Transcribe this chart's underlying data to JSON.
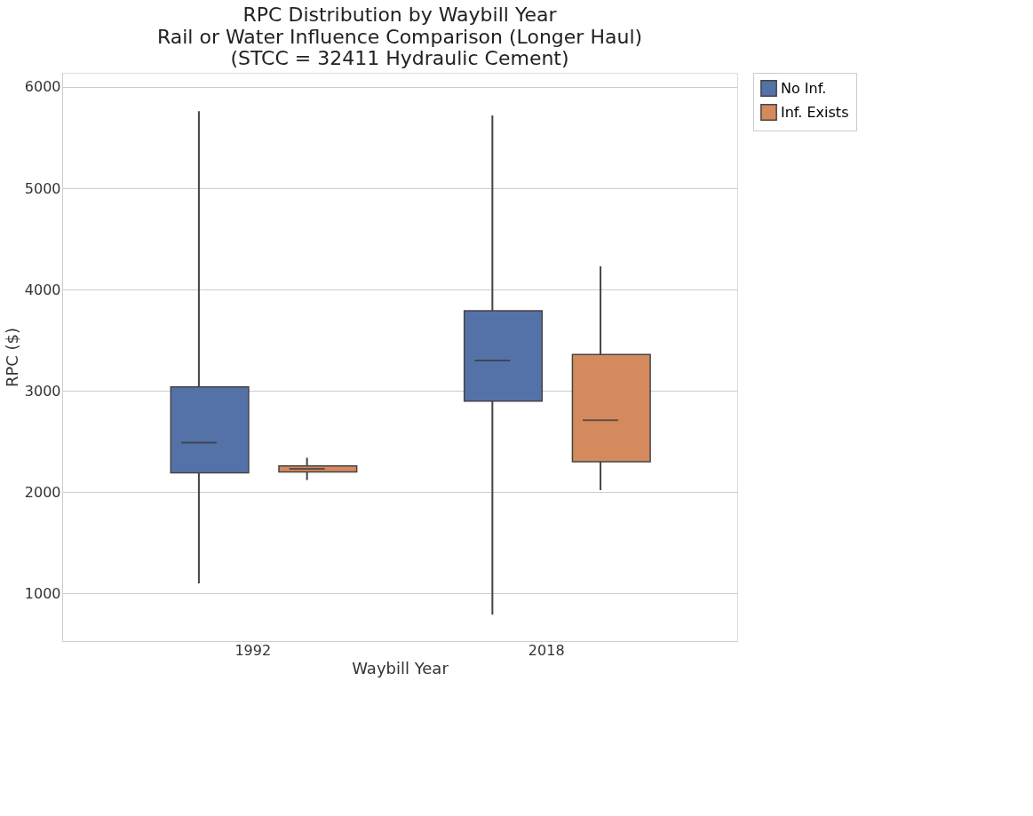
{
  "chart_data": {
    "type": "box",
    "title": "RPC Distribution by Waybill Year",
    "subtitle": [
      "Rail or Water Influence Comparison (Longer Haul)",
      "(STCC = 32411 Hydraulic Cement)"
    ],
    "xlabel": "Waybill Year",
    "ylabel": "RPC ($)",
    "categories": [
      "1992",
      "2018"
    ],
    "series": [
      {
        "name": "No Inf.",
        "color": "#5572a8",
        "boxes": [
          {
            "low": 1100,
            "q1": 2190,
            "median": 2490,
            "q3": 3040,
            "high": 5760
          },
          {
            "low": 790,
            "q1": 2900,
            "median": 3300,
            "q3": 3790,
            "high": 5720
          }
        ]
      },
      {
        "name": "Inf. Exists",
        "color": "#d58a5e",
        "boxes": [
          {
            "low": 2120,
            "q1": 2200,
            "median": 2230,
            "q3": 2260,
            "high": 2340
          },
          {
            "low": 2020,
            "q1": 2300,
            "median": 2710,
            "q3": 3360,
            "high": 4230
          }
        ]
      }
    ],
    "ylim": [
      530,
      6140
    ],
    "yticks": [
      1000,
      2000,
      3000,
      4000,
      5000,
      6000
    ],
    "grid": "y",
    "legend": "right"
  }
}
